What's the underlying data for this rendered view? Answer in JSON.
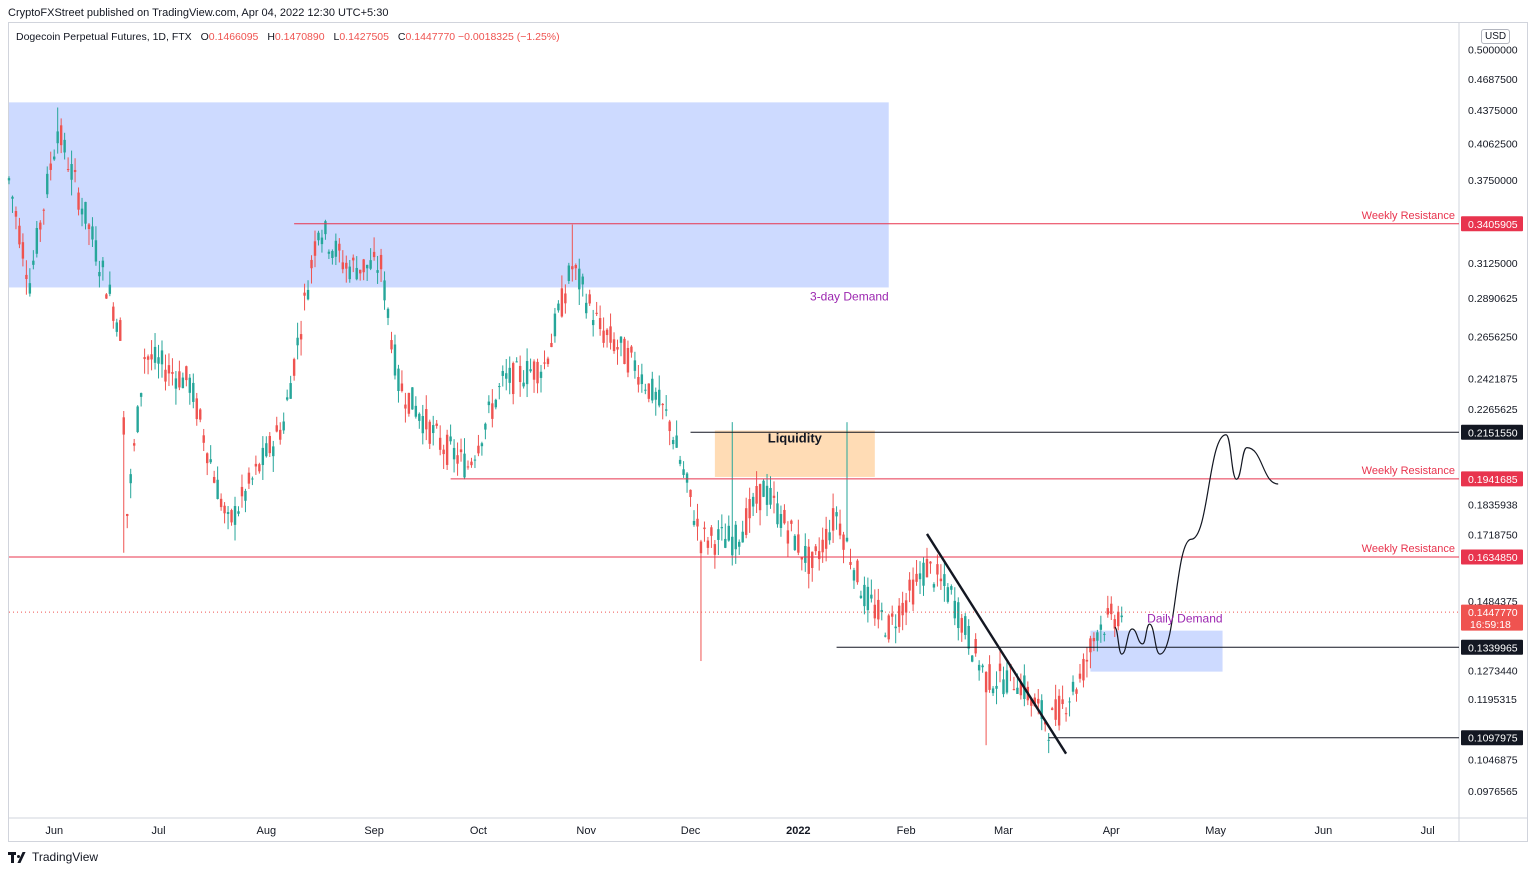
{
  "header": {
    "publisher_line": "CryptoFXStreet published on TradingView.com, Apr 04, 2022 12:30 UTC+5:30"
  },
  "legend": {
    "symbol": "Dogecoin Perpetual Futures, 1D, FTX",
    "open_label": "O",
    "open": "0.1466095",
    "high_label": "H",
    "high": "0.1470890",
    "low_label": "L",
    "low": "0.1427505",
    "close_label": "C",
    "close": "0.1447770",
    "change": "−0.0018325 (−1.25%)"
  },
  "currency_badge": "USD",
  "footer": {
    "brand": "TradingView"
  },
  "colors": {
    "up": "#26a69a",
    "down": "#ef5350",
    "resistance": "#e8344e",
    "demand_zone": "#bcceff",
    "liquidity_zone": "#ffd6a8",
    "label_purple": "#9c27b0"
  },
  "chart_data": {
    "type": "candlestick",
    "y_scale": "log",
    "ylim": [
      0.092,
      0.53
    ],
    "y_tick_labels": [
      "0.5000000",
      "0.4687500",
      "0.4375000",
      "0.4062500",
      "0.3750000",
      "0.3125000",
      "0.2890625",
      "0.2656250",
      "0.2421875",
      "0.2265625",
      "0.1835938",
      "0.1718750",
      "0.1484375",
      "0.1273440",
      "0.1195315",
      "0.1046875",
      "0.0976565"
    ],
    "x_tick_labels": [
      "Jun",
      "Jul",
      "Aug",
      "Sep",
      "Oct",
      "Nov",
      "Dec",
      "2022",
      "Feb",
      "Mar",
      "Apr",
      "May",
      "Jun",
      "Jul"
    ],
    "x_tick_dates": [
      "2021-06-01",
      "2021-07-01",
      "2021-08-01",
      "2021-09-01",
      "2021-10-01",
      "2021-11-01",
      "2021-12-01",
      "2022-01-01",
      "2022-02-01",
      "2022-03-01",
      "2022-04-01",
      "2022-05-01",
      "2022-06-01",
      "2022-07-01"
    ],
    "x_range": [
      "2021-05-19",
      "2022-07-10"
    ],
    "price_labels": [
      {
        "value": 0.3405905,
        "text": "0.3405905",
        "color": "#e8344e"
      },
      {
        "value": 0.215155,
        "text": "0.2151550",
        "color": "#131722"
      },
      {
        "value": 0.1941685,
        "text": "0.1941685",
        "color": "#e8344e"
      },
      {
        "value": 0.163485,
        "text": "0.1634850",
        "color": "#e8344e"
      },
      {
        "value": 0.144777,
        "text": "0.1447770",
        "sub": "16:59:18",
        "color": "#ef5350"
      },
      {
        "value": 0.1339965,
        "text": "0.1339965",
        "color": "#131722"
      },
      {
        "value": 0.1097975,
        "text": "0.1097975",
        "color": "#131722"
      }
    ],
    "annotations": {
      "weekly_resistance": "Weekly Resistance",
      "three_day_demand": "3-day Demand",
      "liquidity": "Liquidity",
      "daily_demand": "Daily Demand"
    },
    "horizontal_levels": [
      {
        "value": 0.3405905,
        "from": "2021-08-09",
        "to": "axis",
        "color": "#e8344e",
        "label": "Weekly Resistance"
      },
      {
        "value": 0.215155,
        "from": "2021-12-01",
        "to": "axis",
        "color": "#131722",
        "label": ""
      },
      {
        "value": 0.1941685,
        "from": "2021-09-23",
        "to": "axis",
        "color": "#e8344e",
        "label": "Weekly Resistance"
      },
      {
        "value": 0.163485,
        "from": "2021-05-19",
        "to": "axis",
        "color": "#e8344e",
        "label": "Weekly Resistance"
      },
      {
        "value": 0.1339965,
        "from": "2022-01-12",
        "to": "axis",
        "color": "#131722",
        "label": ""
      },
      {
        "value": 0.1097975,
        "from": "2022-03-14",
        "to": "axis",
        "color": "#131722",
        "label": ""
      }
    ],
    "zones": [
      {
        "name": "3-day Demand",
        "x0": "2021-05-19",
        "x1": "2022-01-27",
        "y0": 0.296,
        "y1": 0.445
      },
      {
        "name": "Liquidity",
        "x0": "2021-12-08",
        "x1": "2022-01-23",
        "y0": 0.195,
        "y1": 0.216
      },
      {
        "name": "Daily Demand",
        "x0": "2022-03-26",
        "x1": "2022-05-03",
        "y0": 0.127,
        "y1": 0.139
      }
    ],
    "trendline": [
      [
        "2022-02-07",
        0.172
      ],
      [
        "2022-03-19",
        0.106
      ]
    ],
    "projection": [
      [
        "2022-04-02",
        0.14
      ],
      [
        "2022-04-04",
        0.132
      ],
      [
        "2022-04-07",
        0.1395
      ],
      [
        "2022-04-10",
        0.135
      ],
      [
        "2022-04-12",
        0.141
      ],
      [
        "2022-04-15",
        0.132
      ],
      [
        "2022-04-24",
        0.17
      ],
      [
        "2022-05-04",
        0.214
      ],
      [
        "2022-05-07",
        0.194
      ],
      [
        "2022-05-10",
        0.208
      ],
      [
        "2022-05-19",
        0.192
      ]
    ],
    "candles_summary": {
      "start": "2021-05-19",
      "end": "2022-04-04",
      "first_open": 0.375,
      "last_close": 0.144777
    }
  }
}
